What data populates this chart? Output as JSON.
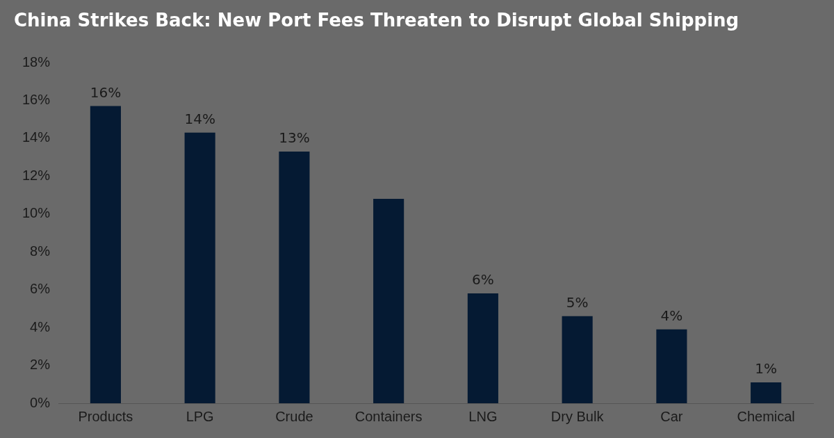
{
  "chart_data": {
    "type": "bar",
    "title": "China Strikes Back: New Port Fees Threaten to Disrupt Global Shipping",
    "categories": [
      "Products",
      "LPG",
      "Crude",
      "Containers",
      "LNG",
      "Dry Bulk",
      "Car",
      "Chemical"
    ],
    "values": [
      15.7,
      14.3,
      13.3,
      10.8,
      5.8,
      4.6,
      3.9,
      1.1
    ],
    "value_labels": [
      "16%",
      "14%",
      "13%",
      null,
      "6%",
      "5%",
      "4%",
      "1%"
    ],
    "color": "#051a33",
    "ylim": [
      0,
      18
    ],
    "yticks": [
      {
        "value": 0,
        "label": "0%"
      },
      {
        "value": 2,
        "label": "2%"
      },
      {
        "value": 4,
        "label": "4%"
      },
      {
        "value": 6,
        "label": "6%"
      },
      {
        "value": 8,
        "label": "8%"
      },
      {
        "value": 10,
        "label": "10%"
      },
      {
        "value": 12,
        "label": "12%"
      },
      {
        "value": 14,
        "label": "14%"
      },
      {
        "value": 16,
        "label": "16%"
      },
      {
        "value": 18,
        "label": "18%"
      }
    ],
    "grid": false,
    "legend": false
  }
}
